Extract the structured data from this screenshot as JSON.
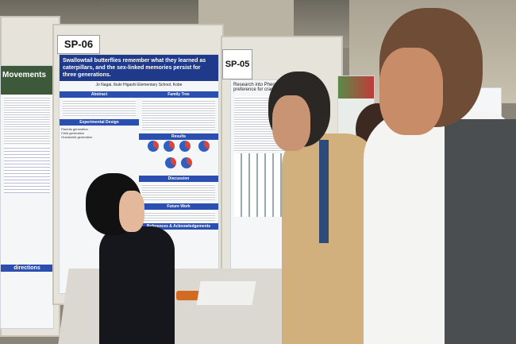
{
  "scene": {
    "colors": {
      "poster_title": "#1f3a8a",
      "poster_heading": "#2b4fb0",
      "shirt_tan": "#d2b07e",
      "shirt_white": "#f4f4f2",
      "suit": "#15171c"
    }
  },
  "posters": {
    "left": {
      "partial_title": "Movements",
      "footer": "directions"
    },
    "sp06": {
      "tag": "SP-06",
      "title": "Swallowtail butterflies remember what they learned as caterpillars, and the sex-linked memories persist for three generations.",
      "author": "Jo Nagai, Ibuki Higashi Elementary School, Kobe",
      "headings": [
        "Abstract",
        "Family Tree",
        "Experimental Design",
        "Results",
        "Discussion",
        "Future Work",
        "References",
        "Acknowledgements"
      ],
      "left_labels": [
        "Parents generation",
        "Child generation",
        "Grandchild generation"
      ]
    },
    "sp05": {
      "tag": "SP-05",
      "title_partial": "Research into Phenol… preference for cradle…"
    }
  }
}
